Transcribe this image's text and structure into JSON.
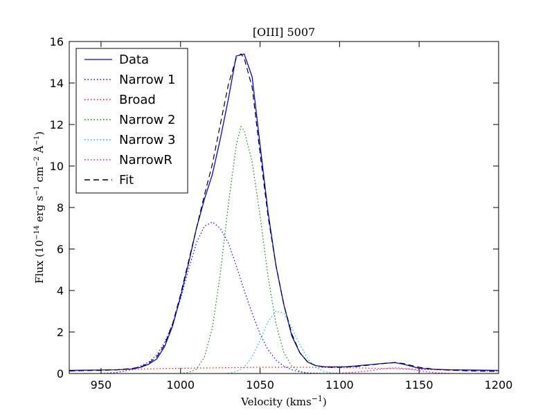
{
  "chart_data": {
    "type": "line",
    "title": "[OIII] 5007",
    "xlabel_main": "Velocity (kms",
    "xlabel_sup": "−1",
    "xlabel_end": ")",
    "ylabel_main": "Flux (10",
    "ylabel_sup1": "−14",
    "ylabel_mid": " erg s",
    "ylabel_sup2": "−1",
    "ylabel_mid2": " cm",
    "ylabel_sup3": "−2",
    "ylabel_mid3": " Å",
    "ylabel_sup4": "−1",
    "ylabel_end": ")",
    "xlim": [
      930,
      1200
    ],
    "ylim": [
      0,
      16
    ],
    "xticks": [
      950,
      1000,
      1050,
      1100,
      1150,
      1200
    ],
    "yticks": [
      0,
      2,
      4,
      6,
      8,
      10,
      12,
      14,
      16
    ],
    "grid": false,
    "legend_position": "top-left",
    "series": [
      {
        "name": "Data",
        "color": "#0000ff",
        "style": "solid",
        "x": [
          930,
          940,
          950,
          960,
          970,
          975,
          980,
          985,
          990,
          995,
          1000,
          1005,
          1010,
          1015,
          1020,
          1025,
          1030,
          1035,
          1040,
          1045,
          1050,
          1055,
          1060,
          1065,
          1070,
          1075,
          1080,
          1085,
          1090,
          1095,
          1100,
          1105,
          1110,
          1115,
          1120,
          1125,
          1130,
          1135,
          1140,
          1145,
          1150,
          1160,
          1170,
          1180,
          1190,
          1200
        ],
        "y": [
          0.15,
          0.16,
          0.17,
          0.18,
          0.22,
          0.3,
          0.45,
          0.7,
          1.3,
          2.3,
          3.7,
          5.3,
          7.0,
          8.4,
          9.6,
          11.3,
          13.2,
          15.3,
          15.4,
          14.3,
          11.0,
          7.8,
          5.2,
          3.3,
          1.8,
          1.0,
          0.55,
          0.38,
          0.33,
          0.32,
          0.32,
          0.33,
          0.36,
          0.4,
          0.43,
          0.47,
          0.5,
          0.52,
          0.45,
          0.35,
          0.25,
          0.2,
          0.18,
          0.17,
          0.16,
          0.15
        ]
      },
      {
        "name": "Narrow 1",
        "color": "#0000ff",
        "style": "dotted",
        "x": [
          950,
          960,
          970,
          980,
          985,
          990,
          995,
          1000,
          1005,
          1010,
          1015,
          1020,
          1025,
          1030,
          1035,
          1040,
          1045,
          1050,
          1055,
          1060,
          1065,
          1070,
          1075,
          1080,
          1090
        ],
        "y": [
          0.0,
          0.05,
          0.2,
          0.55,
          0.9,
          1.5,
          2.4,
          3.6,
          5.0,
          6.3,
          7.1,
          7.3,
          7.0,
          6.3,
          5.2,
          4.0,
          2.9,
          1.9,
          1.15,
          0.65,
          0.35,
          0.18,
          0.08,
          0.03,
          0.0
        ]
      },
      {
        "name": "Broad",
        "color": "#ff0000",
        "style": "dotted",
        "x": [
          930,
          960,
          990,
          1020,
          1050,
          1080,
          1110,
          1140,
          1170,
          1200
        ],
        "y": [
          0.12,
          0.18,
          0.24,
          0.27,
          0.3,
          0.3,
          0.27,
          0.22,
          0.16,
          0.1
        ]
      },
      {
        "name": "Narrow 2",
        "color": "#008000",
        "style": "dotted",
        "x": [
          1000,
          1005,
          1010,
          1015,
          1020,
          1025,
          1030,
          1035,
          1038,
          1040,
          1045,
          1050,
          1055,
          1060,
          1065,
          1070,
          1075,
          1080
        ],
        "y": [
          0.0,
          0.05,
          0.2,
          0.8,
          2.2,
          4.8,
          8.1,
          11.0,
          11.9,
          11.7,
          10.2,
          7.6,
          4.7,
          2.4,
          1.0,
          0.35,
          0.1,
          0.0
        ]
      },
      {
        "name": "Narrow 3",
        "color": "#00bfbf",
        "style": "dotted",
        "x": [
          1030,
          1035,
          1040,
          1045,
          1050,
          1055,
          1060,
          1065,
          1070,
          1075,
          1080,
          1085,
          1090,
          1095,
          1100
        ],
        "y": [
          0.0,
          0.1,
          0.3,
          0.8,
          1.6,
          2.5,
          3.0,
          2.9,
          2.2,
          1.4,
          0.7,
          0.3,
          0.1,
          0.03,
          0.0
        ]
      },
      {
        "name": "NarrowR",
        "color": "#cc00cc",
        "style": "dotted",
        "x": [
          1090,
          1100,
          1110,
          1120,
          1125,
          1130,
          1135,
          1140,
          1145,
          1150,
          1160,
          1170
        ],
        "y": [
          0.0,
          0.02,
          0.06,
          0.14,
          0.2,
          0.25,
          0.27,
          0.25,
          0.2,
          0.13,
          0.04,
          0.0
        ]
      },
      {
        "name": "Fit",
        "color": "#000000",
        "style": "dashed",
        "x": [
          930,
          940,
          950,
          960,
          970,
          975,
          980,
          985,
          990,
          995,
          1000,
          1005,
          1010,
          1015,
          1020,
          1025,
          1030,
          1035,
          1038,
          1040,
          1045,
          1050,
          1055,
          1060,
          1065,
          1070,
          1075,
          1080,
          1085,
          1090,
          1095,
          1100,
          1110,
          1120,
          1130,
          1135,
          1140,
          1150,
          1160,
          1170,
          1180,
          1200
        ],
        "y": [
          0.12,
          0.14,
          0.15,
          0.18,
          0.25,
          0.32,
          0.5,
          0.8,
          1.4,
          2.4,
          3.8,
          5.4,
          7.0,
          8.6,
          10.1,
          12.0,
          13.9,
          15.2,
          15.4,
          15.2,
          13.8,
          10.6,
          7.6,
          5.2,
          3.3,
          1.9,
          1.0,
          0.55,
          0.38,
          0.32,
          0.3,
          0.3,
          0.33,
          0.42,
          0.5,
          0.53,
          0.48,
          0.3,
          0.2,
          0.16,
          0.13,
          0.1
        ]
      }
    ]
  }
}
